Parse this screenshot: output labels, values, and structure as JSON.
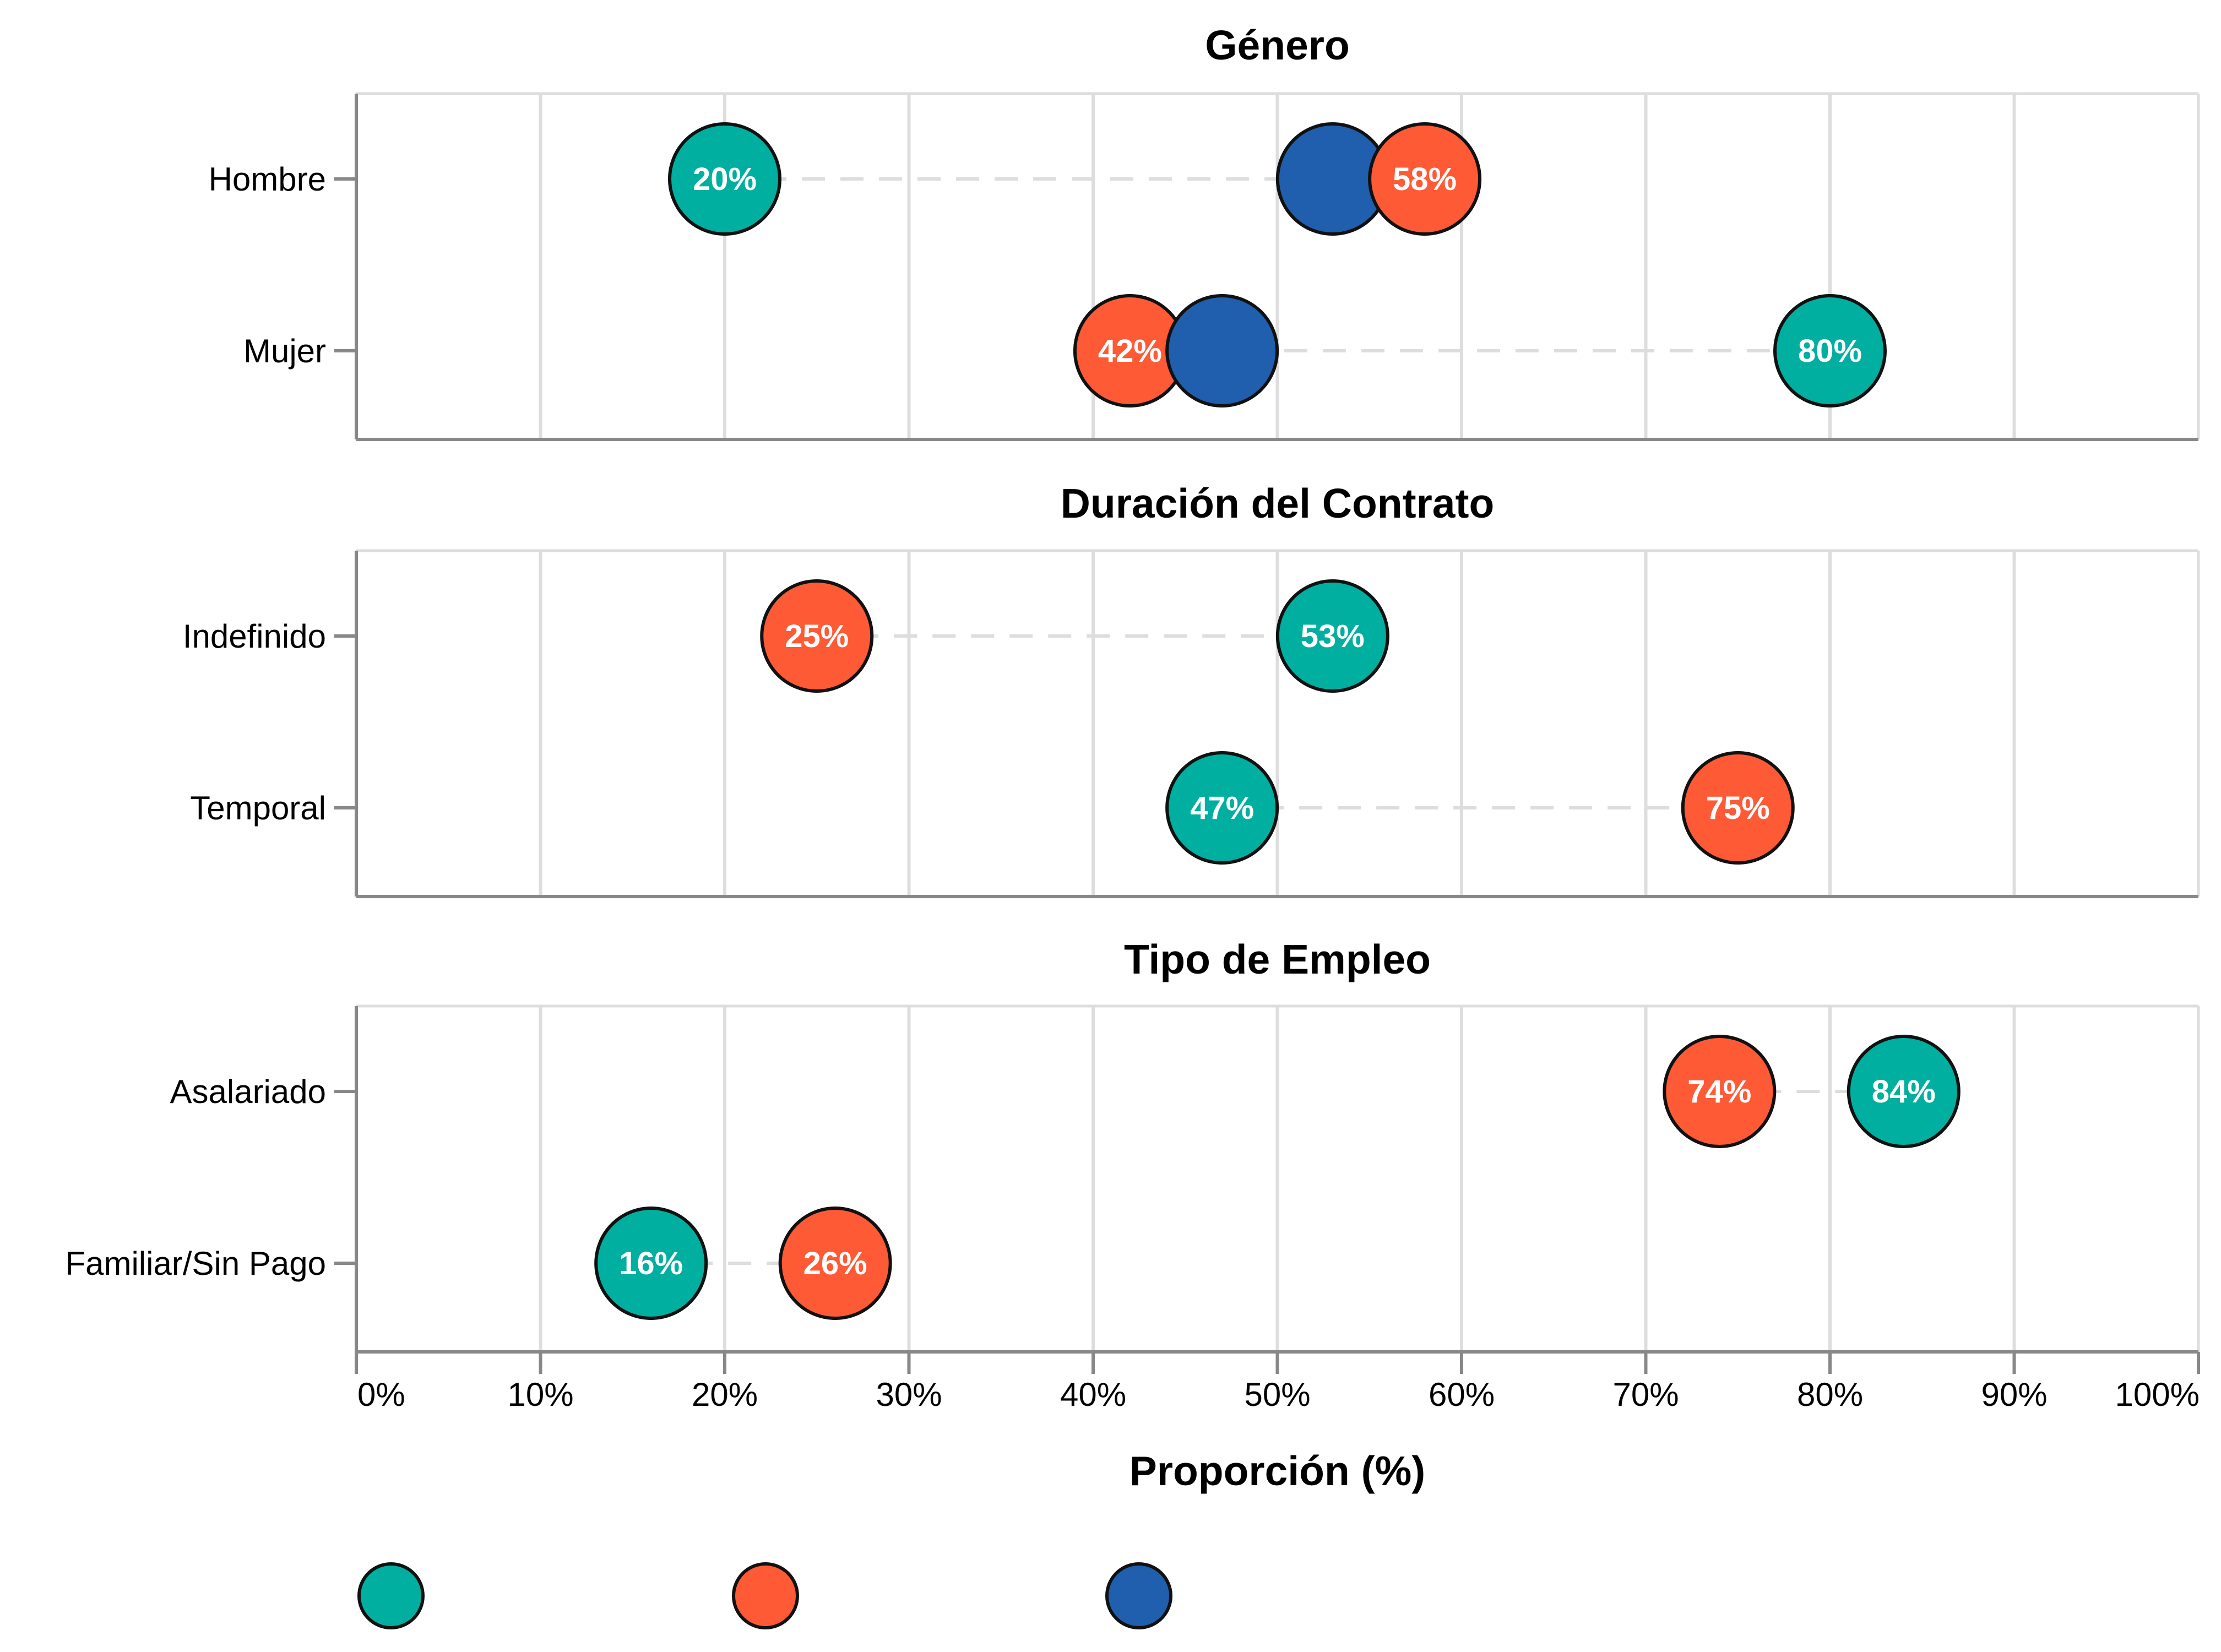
{
  "chart_data": {
    "type": "scatter",
    "xlabel": "Proporción (%)",
    "xlim": [
      0,
      100
    ],
    "x_ticks": [
      "0%",
      "10%",
      "20%",
      "30%",
      "40%",
      "50%",
      "60%",
      "70%",
      "80%",
      "90%",
      "100%"
    ],
    "grid": true,
    "legend_position": "bottom-left",
    "series": [
      {
        "name": "",
        "color": "#00AFA0"
      },
      {
        "name": "",
        "color": "#FF5A36"
      },
      {
        "name": "",
        "color": "#1F5FAD"
      }
    ],
    "panels": [
      {
        "title": "Género",
        "rows": [
          {
            "label": "Hombre",
            "points": [
              {
                "series": 0,
                "value": 20,
                "text": "20%"
              },
              {
                "series": 2,
                "value": 53
              },
              {
                "series": 1,
                "value": 58,
                "text": "58%"
              }
            ]
          },
          {
            "label": "Mujer",
            "points": [
              {
                "series": 1,
                "value": 42,
                "text": "42%"
              },
              {
                "series": 2,
                "value": 47
              },
              {
                "series": 0,
                "value": 80,
                "text": "80%"
              }
            ]
          }
        ]
      },
      {
        "title": "Duración del Contrato",
        "rows": [
          {
            "label": "Indefinido",
            "points": [
              {
                "series": 1,
                "value": 25,
                "text": "25%"
              },
              {
                "series": 0,
                "value": 53,
                "text": "53%"
              }
            ]
          },
          {
            "label": "Temporal",
            "points": [
              {
                "series": 0,
                "value": 47,
                "text": "47%"
              },
              {
                "series": 1,
                "value": 75,
                "text": "75%"
              }
            ]
          }
        ]
      },
      {
        "title": "Tipo de Empleo",
        "rows": [
          {
            "label": "Asalariado",
            "points": [
              {
                "series": 1,
                "value": 74,
                "text": "74%"
              },
              {
                "series": 0,
                "value": 84,
                "text": "84%"
              }
            ]
          },
          {
            "label": "Familiar/Sin Pago",
            "points": [
              {
                "series": 0,
                "value": 16,
                "text": "16%"
              },
              {
                "series": 1,
                "value": 26,
                "text": "26%"
              }
            ]
          }
        ]
      }
    ]
  }
}
